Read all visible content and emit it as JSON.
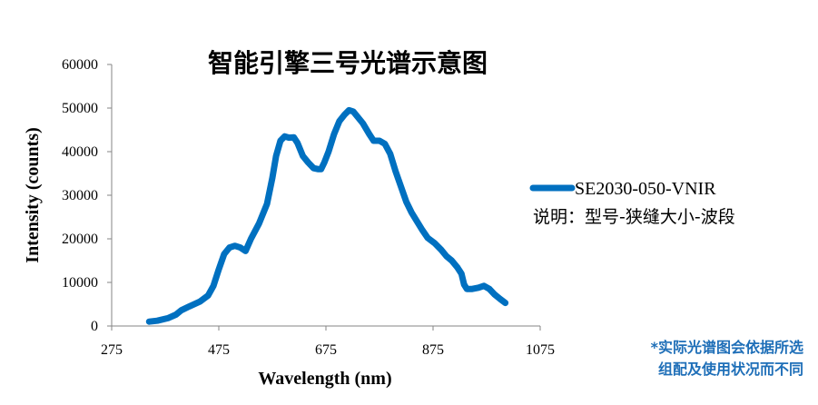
{
  "chart_data": {
    "type": "line",
    "title": "智能引擎三号光谱示意图",
    "xlabel": "Wavelength (nm)",
    "ylabel": "Intensity (counts)",
    "xlim": [
      275,
      1075
    ],
    "ylim": [
      0,
      60000
    ],
    "x_ticks": [
      "275",
      "475",
      "675",
      "875",
      "1075"
    ],
    "y_ticks": [
      "0",
      "10000",
      "20000",
      "30000",
      "40000",
      "50000",
      "60000"
    ],
    "legend_position": "right",
    "series": [
      {
        "name": "SE2030-050-VNIR",
        "color": "#0070c0",
        "points": [
          [
            345,
            1000
          ],
          [
            360,
            1200
          ],
          [
            380,
            1800
          ],
          [
            395,
            2600
          ],
          [
            405,
            3600
          ],
          [
            420,
            4500
          ],
          [
            440,
            5600
          ],
          [
            455,
            7000
          ],
          [
            465,
            9200
          ],
          [
            475,
            13000
          ],
          [
            485,
            16500
          ],
          [
            495,
            18000
          ],
          [
            505,
            18400
          ],
          [
            515,
            18000
          ],
          [
            525,
            17200
          ],
          [
            535,
            20000
          ],
          [
            550,
            23500
          ],
          [
            565,
            28000
          ],
          [
            575,
            34000
          ],
          [
            582,
            39000
          ],
          [
            590,
            42500
          ],
          [
            598,
            43500
          ],
          [
            606,
            43200
          ],
          [
            615,
            43300
          ],
          [
            622,
            42000
          ],
          [
            632,
            39000
          ],
          [
            642,
            37500
          ],
          [
            652,
            36200
          ],
          [
            660,
            36000
          ],
          [
            666,
            36000
          ],
          [
            672,
            37500
          ],
          [
            680,
            40000
          ],
          [
            690,
            44000
          ],
          [
            700,
            47000
          ],
          [
            710,
            48500
          ],
          [
            718,
            49500
          ],
          [
            726,
            49200
          ],
          [
            734,
            48000
          ],
          [
            744,
            46500
          ],
          [
            756,
            44000
          ],
          [
            764,
            42500
          ],
          [
            775,
            42500
          ],
          [
            785,
            41800
          ],
          [
            795,
            39500
          ],
          [
            805,
            35500
          ],
          [
            815,
            32000
          ],
          [
            825,
            28500
          ],
          [
            835,
            26000
          ],
          [
            845,
            24000
          ],
          [
            855,
            22000
          ],
          [
            865,
            20200
          ],
          [
            878,
            19000
          ],
          [
            890,
            17500
          ],
          [
            900,
            16000
          ],
          [
            910,
            15000
          ],
          [
            920,
            13500
          ],
          [
            928,
            12000
          ],
          [
            933,
            9500
          ],
          [
            938,
            8500
          ],
          [
            948,
            8500
          ],
          [
            960,
            8800
          ],
          [
            970,
            9200
          ],
          [
            980,
            8500
          ],
          [
            990,
            7200
          ],
          [
            1000,
            6200
          ],
          [
            1010,
            5300
          ]
        ]
      }
    ],
    "legend_note": "说明：型号-狭缝大小-波段",
    "footnote_lines": [
      "*实际光谱图会依据所选",
      "组配及使用状况而不同"
    ]
  }
}
